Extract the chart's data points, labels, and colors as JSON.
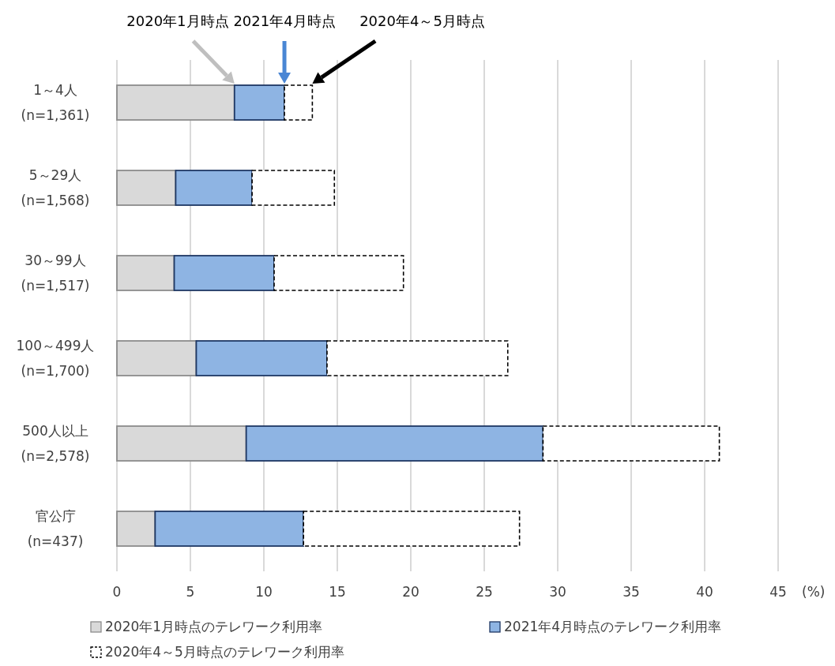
{
  "chart_data": {
    "type": "bar",
    "orientation": "horizontal",
    "stacked": true,
    "categories": [
      "1～4人\n(n=1,361)",
      "5～29人\n(n=1,568)",
      "30～99人\n(n=1,517)",
      "100～499人\n(n=1,700)",
      "500人以上\n(n=2,578)",
      "官公庁\n(n=437)"
    ],
    "series": [
      {
        "name": "2020年1月時点のテレワーク利用率",
        "color": "#d9d9d9",
        "values": [
          8.0,
          4.0,
          3.9,
          5.4,
          8.8,
          2.6
        ]
      },
      {
        "name": "2021年4月時点のテレワーク利用率",
        "color": "#8eb4e3",
        "values": [
          3.4,
          5.2,
          6.8,
          8.9,
          20.2,
          10.1
        ]
      },
      {
        "name": "2020年4～5月時点のテレワーク利用率",
        "color": "#ffffff",
        "line_style": "dashed",
        "values": [
          1.9,
          5.6,
          8.8,
          12.3,
          12.0,
          14.7
        ]
      }
    ],
    "xlim": [
      0,
      45
    ],
    "xticks": [
      0,
      5,
      10,
      15,
      20,
      25,
      30,
      35,
      40,
      45
    ],
    "xlabel": "(%)",
    "grid": "x",
    "legend": "bottom",
    "annotations": [
      "2020年1月時点",
      "2021年4月時点",
      "2020年4～5月時点"
    ]
  }
}
